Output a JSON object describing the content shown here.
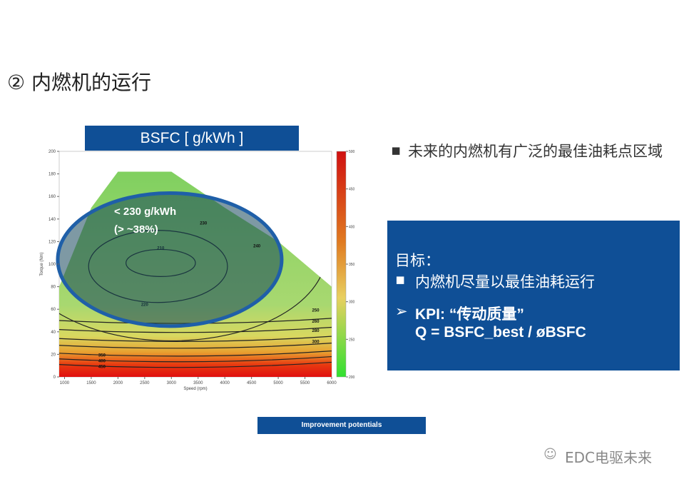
{
  "header": {
    "title": "② 内燃机的运行"
  },
  "chart_data": {
    "type": "contour",
    "title": "BSFC [ g/kWh ]",
    "x_label": "Speed (rpm)",
    "y_label": "Torque (Nm)",
    "xlim": [
      900,
      6000
    ],
    "xticks": [
      1000,
      1500,
      2000,
      2500,
      3000,
      3500,
      4000,
      4500,
      5000,
      5500,
      6000
    ],
    "ylim": [
      0,
      200
    ],
    "yticks": [
      0,
      20,
      40,
      60,
      80,
      100,
      120,
      140,
      160,
      180,
      200
    ],
    "colorbar": {
      "lim": [
        200,
        500
      ],
      "ticks": [
        200,
        250,
        300,
        350,
        400,
        450,
        500
      ]
    },
    "levels": [
      210,
      220,
      230,
      240,
      250,
      260,
      280,
      300,
      350,
      400,
      450
    ],
    "annotation": [
      "< 230 g/kWh",
      "(> ~38%)"
    ]
  },
  "bullets": [
    "未来的内燃机有广泛的最佳油耗点区域"
  ],
  "kpi_box": {
    "heading": "目标：",
    "bullet": "内燃机尽量以最佳油耗运行",
    "kpi": "KPI: “传动质量”",
    "formula": "Q = BSFC_best / øBSFC"
  },
  "footer": "Improvement potentials",
  "watermark": "EDC电驱未来"
}
